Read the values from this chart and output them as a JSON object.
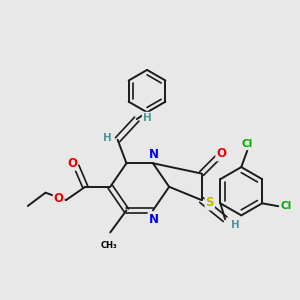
{
  "bg_color": "#e8e8e8",
  "atom_colors": {
    "C": "#000000",
    "N": "#0000ee",
    "O": "#ee0000",
    "S": "#bbbb00",
    "Cl": "#00aa00",
    "H": "#4a9a9a"
  },
  "bond_color": "#1a1a1a",
  "figsize": [
    3.0,
    3.0
  ],
  "dpi": 100
}
